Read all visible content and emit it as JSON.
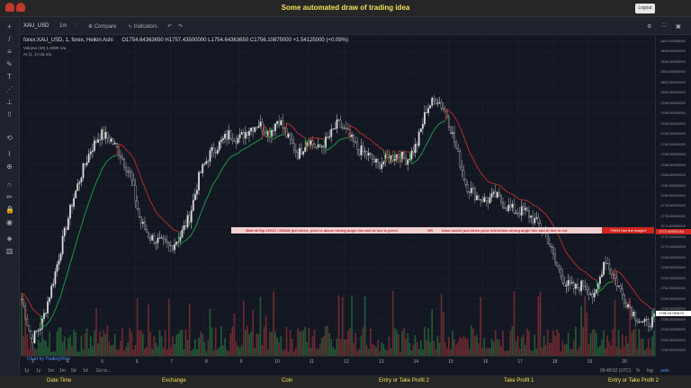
{
  "header": {
    "title": "Some automated draw of trading idea",
    "logout_label": "Logout"
  },
  "toolbar": {
    "symbol": "XAU_USD",
    "interval": "1m",
    "compare_label": "Compare",
    "indicators_label": "Indicators"
  },
  "legend": {
    "main": "forex:XAU_USD, 1, forex, Heikin Ashi",
    "ohlc": "O1754.64363650  H1757.43500000  L1754.64363650  C1756.10875000  +1.54125000 (+0.09%)",
    "volume": "Volume (20)  1.409K  n/a",
    "ai": "AI (1, 1)  n/a  n/a"
  },
  "info_banner": {
    "part1": "Wait till flip CHOC  /   DRAW just when:  price is above strong angle line and AI line is green",
    "part2": "OR",
    "part3": "draw shorts just when price still below strong angle line and AI line is red",
    "action": "THEN See the magic!!"
  },
  "price_axis": {
    "labels": [
      "1810.00000000",
      "1808.00000000",
      "1806.00000000",
      "1804.00000000",
      "1802.00000000",
      "1800.00000000",
      "1798.00000000",
      "1796.00000000",
      "1794.00000000",
      "1792.00000000",
      "1790.00000000",
      "1788.00000000",
      "1786.00000000",
      "1784.00000000",
      "1782.00000000",
      "1780.00000000",
      "1778.00000000",
      "1776.00000000",
      "1774.00000000",
      "1772.00000000",
      "1770.00000000",
      "1768.00000000",
      "1766.00000000",
      "1764.00000000",
      "1762.00000000",
      "1760.00000000",
      "1758.00000000",
      "1756.00000000",
      "1754.00000000",
      "1752.00000000",
      "1750.00000000"
    ],
    "marker_high": "1772.40952144",
    "marker_cur": "1756.24780875"
  },
  "time_axis": [
    "3",
    "4",
    "5",
    "6",
    "7",
    "8",
    "9",
    "10",
    "11",
    "12",
    "13",
    "14",
    "15",
    "16",
    "17",
    "18",
    "19",
    "20"
  ],
  "bottom": {
    "ranges": [
      "1y",
      "1y",
      "1m",
      "1m",
      "5d",
      "1d",
      "Go to..."
    ],
    "clock": "06:49:52 (UTC)",
    "pct": "%",
    "log": "log",
    "auto": "auto"
  },
  "watermark": "Chart by TradingView",
  "tabs": [
    "Date Time",
    "Exchange",
    "Coin",
    "Entry or Take Profit 2",
    "Take Profit 1",
    "Entry or Take Profit 2"
  ],
  "colors": {
    "title": "#f1e15b",
    "up": "#2f8f46",
    "down": "#b23a3a",
    "ai_green": "#1ea345",
    "ai_red": "#c0302a"
  },
  "chart_data": {
    "type": "candlestick",
    "ylim": [
      1749,
      1811
    ],
    "price_path": [
      1760,
      1752,
      1755,
      1762,
      1770,
      1778,
      1784,
      1789,
      1792,
      1791,
      1788,
      1784,
      1775,
      1772,
      1771,
      1770,
      1772,
      1776,
      1784,
      1788,
      1790,
      1792,
      1791,
      1793,
      1794,
      1792,
      1795,
      1791,
      1788,
      1791,
      1789,
      1791,
      1794,
      1792,
      1789,
      1788,
      1786,
      1787,
      1788,
      1787,
      1790,
      1797,
      1799,
      1796,
      1789,
      1782,
      1780,
      1779,
      1780,
      1778,
      1777,
      1777,
      1775,
      1773,
      1767,
      1763,
      1762,
      1763,
      1760,
      1768,
      1764,
      1760,
      1757,
      1755,
      1756
    ]
  }
}
